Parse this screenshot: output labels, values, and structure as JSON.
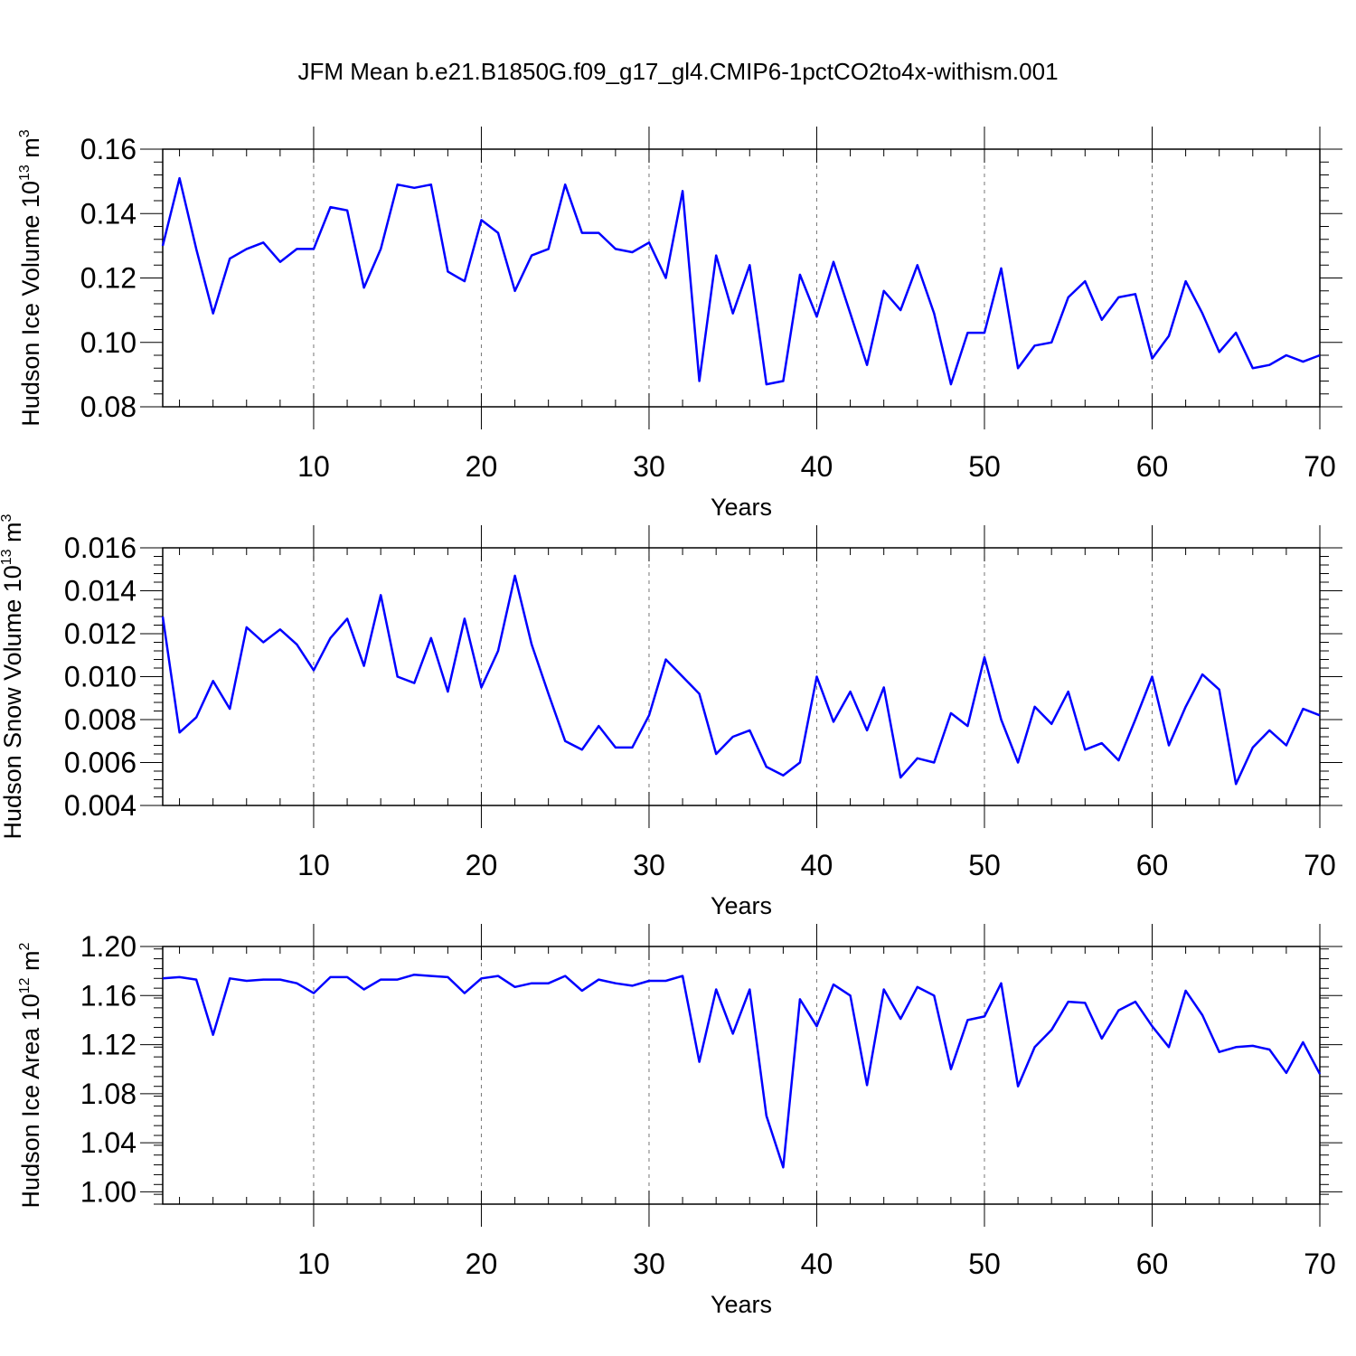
{
  "title": "JFM Mean b.e21.B1850G.f09_g17_gl4.CMIP6-1pctCO2to4x-withism.001",
  "line_color": "#0000ff",
  "chart_data": [
    {
      "type": "line",
      "xlabel": "Years",
      "ylabel": "Hudson Ice Volume 10",
      "ylabel_exp": "13",
      "ylabel_unit": "m",
      "ylabel_unit_exp": "3",
      "xlim": [
        1,
        70
      ],
      "ylim": [
        0.08,
        0.16
      ],
      "grid": "dashed vertical at x ticks",
      "x_ticks": [
        10,
        20,
        30,
        40,
        50,
        60,
        70
      ],
      "x_tick_labels": [
        "10",
        "20",
        "30",
        "40",
        "50",
        "60",
        "70"
      ],
      "y_ticks": [
        0.08,
        0.1,
        0.12,
        0.14,
        0.16
      ],
      "y_tick_labels": [
        "0.08",
        "0.10",
        "0.12",
        "0.14",
        "0.16"
      ],
      "series": [
        {
          "x": [
            1,
            2,
            3,
            4,
            5,
            6,
            7,
            8,
            9,
            10,
            11,
            12,
            13,
            14,
            15,
            16,
            17,
            18,
            19,
            20,
            21,
            22,
            23,
            24,
            25,
            26,
            27,
            28,
            29,
            30,
            31,
            32,
            33,
            34,
            35,
            36,
            37,
            38,
            39,
            40,
            41,
            42,
            43,
            44,
            45,
            46,
            47,
            48,
            49,
            50,
            51,
            52,
            53,
            54,
            55,
            56,
            57,
            58,
            59,
            60,
            61,
            62,
            63,
            64,
            65,
            66,
            67,
            68,
            69,
            70
          ],
          "values": [
            0.13,
            0.151,
            0.129,
            0.109,
            0.126,
            0.129,
            0.131,
            0.125,
            0.129,
            0.129,
            0.142,
            0.141,
            0.117,
            0.129,
            0.149,
            0.148,
            0.149,
            0.122,
            0.119,
            0.138,
            0.134,
            0.116,
            0.127,
            0.129,
            0.149,
            0.134,
            0.134,
            0.129,
            0.128,
            0.131,
            0.12,
            0.147,
            0.088,
            0.127,
            0.109,
            0.124,
            0.087,
            0.088,
            0.121,
            0.108,
            0.125,
            0.109,
            0.093,
            0.116,
            0.11,
            0.124,
            0.109,
            0.087,
            0.103,
            0.103,
            0.123,
            0.092,
            0.099,
            0.1,
            0.114,
            0.119,
            0.107,
            0.114,
            0.115,
            0.095,
            0.102,
            0.119,
            0.109,
            0.097,
            0.103,
            0.092,
            0.093,
            0.096,
            0.094,
            0.096
          ]
        }
      ]
    },
    {
      "type": "line",
      "xlabel": "Years",
      "ylabel": "Hudson Snow Volume 10",
      "ylabel_exp": "13",
      "ylabel_unit": "m",
      "ylabel_unit_exp": "3",
      "xlim": [
        1,
        70
      ],
      "ylim": [
        0.004,
        0.016
      ],
      "grid": "dashed vertical at x ticks",
      "x_ticks": [
        10,
        20,
        30,
        40,
        50,
        60,
        70
      ],
      "x_tick_labels": [
        "10",
        "20",
        "30",
        "40",
        "50",
        "60",
        "70"
      ],
      "y_ticks": [
        0.004,
        0.006,
        0.008,
        0.01,
        0.012,
        0.014,
        0.016
      ],
      "y_tick_labels": [
        "0.004",
        "0.006",
        "0.008",
        "0.010",
        "0.012",
        "0.014",
        "0.016"
      ],
      "series": [
        {
          "x": [
            1,
            2,
            3,
            4,
            5,
            6,
            7,
            8,
            9,
            10,
            11,
            12,
            13,
            14,
            15,
            16,
            17,
            18,
            19,
            20,
            21,
            22,
            23,
            24,
            25,
            26,
            27,
            28,
            29,
            30,
            31,
            32,
            33,
            34,
            35,
            36,
            37,
            38,
            39,
            40,
            41,
            42,
            43,
            44,
            45,
            46,
            47,
            48,
            49,
            50,
            51,
            52,
            53,
            54,
            55,
            56,
            57,
            58,
            59,
            60,
            61,
            62,
            63,
            64,
            65,
            66,
            67,
            68,
            69,
            70
          ],
          "values": [
            0.0128,
            0.0074,
            0.0081,
            0.0098,
            0.0085,
            0.0123,
            0.0116,
            0.0122,
            0.0115,
            0.0103,
            0.0118,
            0.0127,
            0.0105,
            0.0138,
            0.01,
            0.0097,
            0.0118,
            0.0093,
            0.0127,
            0.0095,
            0.0112,
            0.0147,
            0.0115,
            0.0092,
            0.007,
            0.0066,
            0.0077,
            0.0067,
            0.0067,
            0.0082,
            0.0108,
            0.01,
            0.0092,
            0.0064,
            0.0072,
            0.0075,
            0.0058,
            0.0054,
            0.006,
            0.01,
            0.0079,
            0.0093,
            0.0075,
            0.0095,
            0.0053,
            0.0062,
            0.006,
            0.0083,
            0.0077,
            0.0109,
            0.008,
            0.006,
            0.0086,
            0.0078,
            0.0093,
            0.0066,
            0.0069,
            0.0061,
            0.008,
            0.01,
            0.0068,
            0.0086,
            0.0101,
            0.0094,
            0.005,
            0.0067,
            0.0075,
            0.0068,
            0.0085,
            0.0082
          ]
        }
      ]
    },
    {
      "type": "line",
      "xlabel": "Years",
      "ylabel": "Hudson Ice Area 10",
      "ylabel_exp": "12",
      "ylabel_unit": "m",
      "ylabel_unit_exp": "2",
      "xlim": [
        1,
        70
      ],
      "ylim": [
        0.99,
        1.2
      ],
      "grid": "dashed vertical at x ticks",
      "x_ticks": [
        10,
        20,
        30,
        40,
        50,
        60,
        70
      ],
      "x_tick_labels": [
        "10",
        "20",
        "30",
        "40",
        "50",
        "60",
        "70"
      ],
      "y_ticks": [
        1.0,
        1.04,
        1.08,
        1.12,
        1.16,
        1.2
      ],
      "y_tick_labels": [
        "1.00",
        "1.04",
        "1.08",
        "1.12",
        "1.16",
        "1.20"
      ],
      "series": [
        {
          "x": [
            1,
            2,
            3,
            4,
            5,
            6,
            7,
            8,
            9,
            10,
            11,
            12,
            13,
            14,
            15,
            16,
            17,
            18,
            19,
            20,
            21,
            22,
            23,
            24,
            25,
            26,
            27,
            28,
            29,
            30,
            31,
            32,
            33,
            34,
            35,
            36,
            37,
            38,
            39,
            40,
            41,
            42,
            43,
            44,
            45,
            46,
            47,
            48,
            49,
            50,
            51,
            52,
            53,
            54,
            55,
            56,
            57,
            58,
            59,
            60,
            61,
            62,
            63,
            64,
            65,
            66,
            67,
            68,
            69,
            70
          ],
          "values": [
            1.174,
            1.175,
            1.173,
            1.128,
            1.174,
            1.172,
            1.173,
            1.173,
            1.17,
            1.162,
            1.175,
            1.175,
            1.165,
            1.173,
            1.173,
            1.177,
            1.176,
            1.175,
            1.162,
            1.174,
            1.176,
            1.167,
            1.17,
            1.17,
            1.176,
            1.164,
            1.173,
            1.17,
            1.168,
            1.172,
            1.172,
            1.176,
            1.106,
            1.165,
            1.129,
            1.165,
            1.062,
            1.02,
            1.157,
            1.135,
            1.169,
            1.16,
            1.087,
            1.165,
            1.141,
            1.167,
            1.16,
            1.1,
            1.14,
            1.143,
            1.17,
            1.086,
            1.118,
            1.132,
            1.155,
            1.154,
            1.125,
            1.148,
            1.155,
            1.135,
            1.118,
            1.164,
            1.144,
            1.114,
            1.118,
            1.119,
            1.116,
            1.097,
            1.122,
            1.096
          ]
        }
      ]
    }
  ]
}
